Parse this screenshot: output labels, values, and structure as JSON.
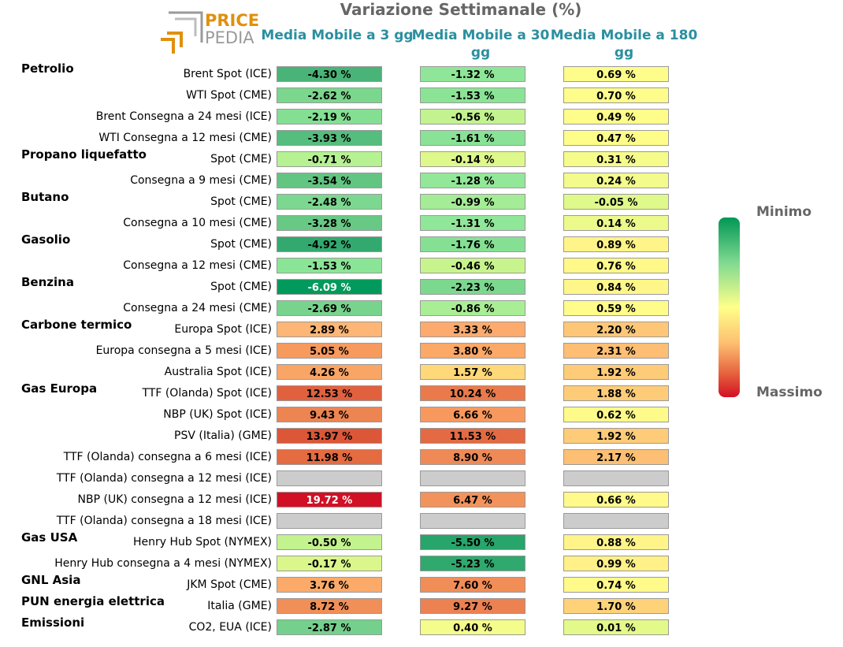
{
  "title": "Variazione Settimanale (%)",
  "logo": {
    "line1": "PRICE",
    "line2": "PEDIA"
  },
  "columns": [
    "Media Mobile a 3 gg",
    "Media Mobile a 30 gg",
    "Media Mobile a 180 gg"
  ],
  "legend": {
    "min_label": "Minimo",
    "max_label": "Massimo"
  },
  "colors": {
    "na": "#cccccc",
    "accent": "#2a8fa0",
    "scale_min": "#019755",
    "scale_mid": "#ffff8a",
    "scale_max": "#d21025"
  },
  "groups": [
    {
      "label": "Petrolio",
      "row": 0
    },
    {
      "label": "Propano liquefatto",
      "row": 4
    },
    {
      "label": "Butano",
      "row": 6
    },
    {
      "label": "Gasolio",
      "row": 8
    },
    {
      "label": "Benzina",
      "row": 10
    },
    {
      "label": "Carbone termico",
      "row": 12
    },
    {
      "label": "Gas Europa",
      "row": 15
    },
    {
      "label": "Gas USA",
      "row": 22
    },
    {
      "label": "GNL Asia",
      "row": 24
    },
    {
      "label": "PUN energia elettrica",
      "row": 25
    },
    {
      "label": "Emissioni",
      "row": 26
    }
  ],
  "chart_data": {
    "type": "table",
    "title": "Variazione Settimanale (%)",
    "columns": [
      "Media Mobile a 3 gg",
      "Media Mobile a 30 gg",
      "Media Mobile a 180 gg"
    ],
    "rows": [
      {
        "label": "Brent Spot (ICE)",
        "values": [
          -4.3,
          -1.32,
          0.69
        ],
        "colors": [
          "#4ab478",
          "#8fe698",
          "#fefc8a"
        ]
      },
      {
        "label": "WTI Spot (CME)",
        "values": [
          -2.62,
          -1.53,
          0.7
        ],
        "colors": [
          "#7bd68e",
          "#8be495",
          "#fefc8a"
        ]
      },
      {
        "label": "Brent Consegna a 24 mesi (ICE)",
        "values": [
          -2.19,
          -0.56,
          0.49
        ],
        "colors": [
          "#84df93",
          "#c2f38f",
          "#fffd8a"
        ]
      },
      {
        "label": "WTI Consegna a 12 mesi (CME)",
        "values": [
          -3.93,
          -1.61,
          0.47
        ],
        "colors": [
          "#55bd7d",
          "#89e295",
          "#fffd8a"
        ]
      },
      {
        "label": "Spot (CME)",
        "values": [
          -0.71,
          -0.14,
          0.31
        ],
        "colors": [
          "#b6f192",
          "#def88b",
          "#f5fc8a"
        ]
      },
      {
        "label": "Consegna a 9 mesi (CME)",
        "values": [
          -3.54,
          -1.28,
          0.24
        ],
        "colors": [
          "#62c582",
          "#92e799",
          "#f2fb8b"
        ]
      },
      {
        "label": "Spot (CME)",
        "values": [
          -2.48,
          -0.99,
          -0.05
        ],
        "colors": [
          "#7cd890",
          "#a4ec96",
          "#dff98b"
        ]
      },
      {
        "label": "Consegna a 10 mesi (CME)",
        "values": [
          -3.28,
          -1.31,
          0.14
        ],
        "colors": [
          "#68c985",
          "#90e699",
          "#ecfa8b"
        ]
      },
      {
        "label": "Spot (CME)",
        "values": [
          -4.92,
          -1.76,
          0.89
        ],
        "colors": [
          "#33a96f",
          "#86e094",
          "#fff488"
        ]
      },
      {
        "label": "Consegna a 12 mesi (CME)",
        "values": [
          -1.53,
          -0.46,
          0.76
        ],
        "colors": [
          "#8be596",
          "#c8f48e",
          "#fff989"
        ]
      },
      {
        "label": "Spot (CME)",
        "values": [
          -6.09,
          -2.23,
          0.84
        ],
        "colors": [
          "#029a5c",
          "#7cd88f",
          "#fff689"
        ]
      },
      {
        "label": "Consegna a 24 mesi (CME)",
        "values": [
          -2.69,
          -0.86,
          0.59
        ],
        "colors": [
          "#78d38d",
          "#a9ee95",
          "#fffc8a"
        ]
      },
      {
        "label": "Europa Spot (ICE)",
        "values": [
          2.89,
          3.33,
          2.2
        ],
        "colors": [
          "#fdb675",
          "#fcaa6d",
          "#fec777"
        ]
      },
      {
        "label": "Europa consegna a 5 mesi (ICE)",
        "values": [
          5.05,
          3.8,
          2.31
        ],
        "colors": [
          "#f79a5e",
          "#fca866",
          "#febe73"
        ]
      },
      {
        "label": "Australia Spot (ICE)",
        "values": [
          4.26,
          1.57,
          1.92
        ],
        "colors": [
          "#f9a566",
          "#fed879",
          "#fecb78"
        ]
      },
      {
        "label": "TTF (Olanda) Spot (ICE)",
        "values": [
          12.53,
          10.24,
          1.88
        ],
        "colors": [
          "#e1613f",
          "#ea7a4b",
          "#fecc78"
        ]
      },
      {
        "label": "NBP (UK) Spot (ICE)",
        "values": [
          9.43,
          6.66,
          0.62
        ],
        "colors": [
          "#ed8552",
          "#f7995e",
          "#fffb8a"
        ]
      },
      {
        "label": "PSV (Italia) (GME)",
        "values": [
          13.97,
          11.53,
          1.92
        ],
        "colors": [
          "#dc5738",
          "#e36a42",
          "#fecb78"
        ]
      },
      {
        "label": "TTF (Olanda) consegna a 6 mesi (ICE)",
        "values": [
          11.98,
          8.9,
          2.17
        ],
        "colors": [
          "#e56b41",
          "#ef8a57",
          "#fdbf73"
        ]
      },
      {
        "label": "TTF (Olanda) consegna a 12 mesi (ICE)",
        "values": [
          null,
          null,
          null
        ],
        "colors": [
          "#cccccc",
          "#cccccc",
          "#cccccc"
        ]
      },
      {
        "label": "NBP (UK) consegna a 12 mesi (ICE)",
        "values": [
          19.72,
          6.47,
          0.66
        ],
        "colors": [
          "#d21025",
          "#f3935c",
          "#fffa8a"
        ]
      },
      {
        "label": "TTF (Olanda) consegna a 18 mesi (ICE)",
        "values": [
          null,
          null,
          null
        ],
        "colors": [
          "#cccccc",
          "#cccccc",
          "#cccccc"
        ]
      },
      {
        "label": "Henry Hub Spot (NYMEX)",
        "values": [
          -0.5,
          -5.5,
          0.88
        ],
        "colors": [
          "#c3f38e",
          "#27a56b",
          "#fff489"
        ]
      },
      {
        "label": "Henry Hub consegna a 4 mesi (NYMEX)",
        "values": [
          -0.17,
          -5.23,
          0.99
        ],
        "colors": [
          "#dbf78b",
          "#30a96e",
          "#fff088"
        ]
      },
      {
        "label": "JKM Spot (CME)",
        "values": [
          3.76,
          7.6,
          0.74
        ],
        "colors": [
          "#fcaa69",
          "#f18d57",
          "#fffa89"
        ]
      },
      {
        "label": "Italia (GME)",
        "values": [
          8.72,
          9.27,
          1.7
        ],
        "colors": [
          "#f08f57",
          "#ec8152",
          "#fed279"
        ]
      },
      {
        "label": "CO2, EUA (ICE)",
        "values": [
          -2.87,
          0.4,
          0.01
        ],
        "colors": [
          "#74d08c",
          "#f4fd8b",
          "#e3f98a"
        ]
      }
    ]
  }
}
